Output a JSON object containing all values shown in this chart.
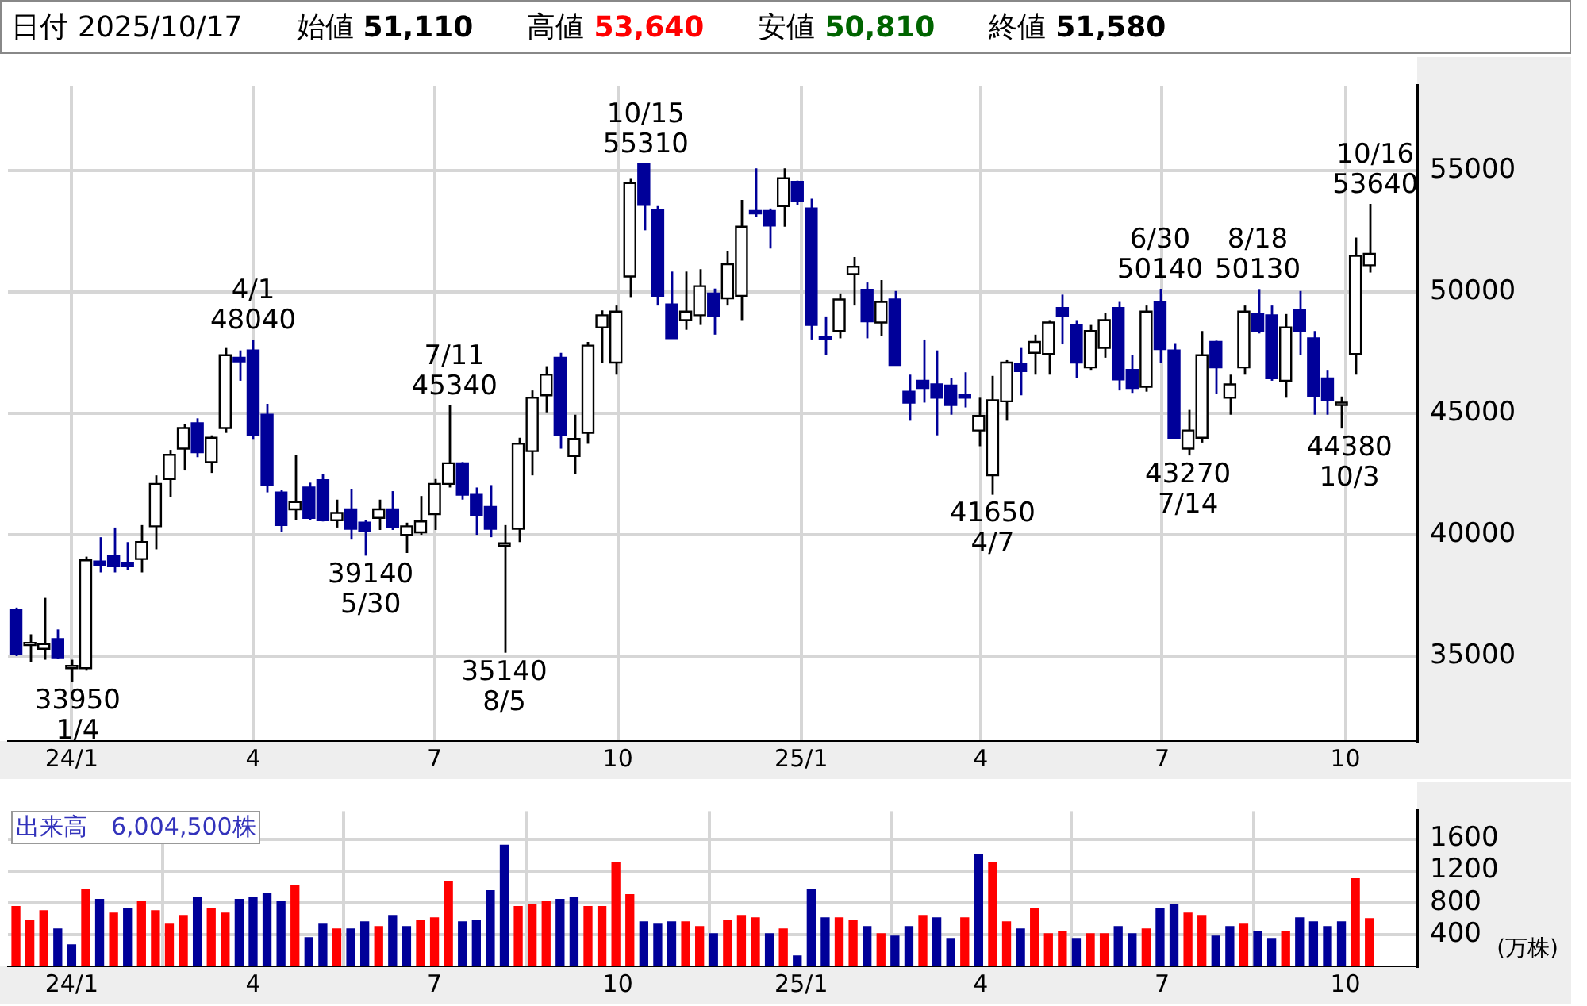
{
  "chart_data": [
    {
      "type": "other",
      "categories": [
        "日付",
        "始値",
        "高値",
        "安値",
        "終値"
      ],
      "value_labels": [
        "2025/10/17",
        "51,110",
        "53,640",
        "50,810",
        "51,580"
      ],
      "colors": [
        "#000000",
        "#000000",
        "#ff0000",
        "#006400",
        "#000000"
      ]
    },
    {
      "type": "candlestick",
      "x": [
        "2023-12-04",
        "2023-12-11",
        "2023-12-18",
        "2023-12-25",
        "2024-01-01",
        "2024-01-08",
        "2024-01-15",
        "2024-01-22",
        "2024-01-29",
        "2024-02-05",
        "2024-02-12",
        "2024-02-19",
        "2024-02-26",
        "2024-03-04",
        "2024-03-11",
        "2024-03-18",
        "2024-03-25",
        "2024-04-01",
        "2024-04-08",
        "2024-04-15",
        "2024-04-22",
        "2024-04-29",
        "2024-05-06",
        "2024-05-13",
        "2024-05-20",
        "2024-05-27",
        "2024-06-03",
        "2024-06-10",
        "2024-06-17",
        "2024-06-24",
        "2024-07-01",
        "2024-07-08",
        "2024-07-15",
        "2024-07-22",
        "2024-07-29",
        "2024-08-05",
        "2024-08-12",
        "2024-08-19",
        "2024-08-26",
        "2024-09-02",
        "2024-09-09",
        "2024-09-16",
        "2024-09-23",
        "2024-09-30",
        "2024-10-07",
        "2024-10-14",
        "2024-10-21",
        "2024-10-28",
        "2024-11-04",
        "2024-11-11",
        "2024-11-18",
        "2024-11-25",
        "2024-12-02",
        "2024-12-09",
        "2024-12-16",
        "2024-12-23",
        "2024-12-30",
        "2025-01-06",
        "2025-01-13",
        "2025-01-20",
        "2025-01-27",
        "2025-02-03",
        "2025-02-10",
        "2025-02-17",
        "2025-02-24",
        "2025-03-03",
        "2025-03-10",
        "2025-03-17",
        "2025-03-24",
        "2025-03-31",
        "2025-04-07",
        "2025-04-14",
        "2025-04-21",
        "2025-04-28",
        "2025-05-05",
        "2025-05-12",
        "2025-05-19",
        "2025-05-26",
        "2025-06-02",
        "2025-06-09",
        "2025-06-16",
        "2025-06-23",
        "2025-06-30",
        "2025-07-07",
        "2025-07-14",
        "2025-07-21",
        "2025-07-28",
        "2025-08-04",
        "2025-08-11",
        "2025-08-18",
        "2025-08-25",
        "2025-09-01",
        "2025-09-08",
        "2025-09-15",
        "2025-09-22",
        "2025-09-29",
        "2025-10-06",
        "2025-10-13"
      ],
      "ohlc": [
        [
          36900,
          37000,
          35000,
          35100
        ],
        [
          35500,
          35900,
          34750,
          35550
        ],
        [
          35300,
          37400,
          34850,
          35500
        ],
        [
          35700,
          36100,
          34900,
          34950
        ],
        [
          34500,
          34850,
          33950,
          34600
        ],
        [
          34500,
          39100,
          34400,
          38950
        ],
        [
          38900,
          39900,
          38450,
          38750
        ],
        [
          39150,
          40300,
          38450,
          38700
        ],
        [
          38850,
          39700,
          38550,
          38700
        ],
        [
          39000,
          40400,
          38450,
          39700
        ],
        [
          40350,
          42450,
          39400,
          42100
        ],
        [
          42300,
          43500,
          41550,
          43300
        ],
        [
          43550,
          44550,
          42650,
          44400
        ],
        [
          44600,
          44800,
          43200,
          43400
        ],
        [
          43000,
          44100,
          42550,
          44000
        ],
        [
          44400,
          47700,
          44200,
          47400
        ],
        [
          47300,
          47600,
          46350,
          47150
        ],
        [
          47600,
          48040,
          43950,
          44100
        ],
        [
          44950,
          45400,
          41750,
          42050
        ],
        [
          41750,
          41850,
          40100,
          40400
        ],
        [
          41050,
          43300,
          40600,
          41350
        ],
        [
          41950,
          42150,
          40600,
          40700
        ],
        [
          42250,
          42500,
          40550,
          40600
        ],
        [
          40600,
          41450,
          40300,
          40900
        ],
        [
          41050,
          41900,
          39800,
          40250
        ],
        [
          40500,
          40600,
          39140,
          40150
        ],
        [
          40700,
          41450,
          40200,
          41050
        ],
        [
          41050,
          41800,
          40200,
          40300
        ],
        [
          40000,
          40500,
          39250,
          40350
        ],
        [
          40100,
          41600,
          40000,
          40550
        ],
        [
          40850,
          42300,
          40200,
          42100
        ],
        [
          42100,
          45340,
          41950,
          42950
        ],
        [
          42950,
          43000,
          41450,
          41650
        ],
        [
          41650,
          41950,
          40000,
          40800
        ],
        [
          41150,
          42050,
          39900,
          40250
        ],
        [
          39600,
          40400,
          35140,
          39650
        ],
        [
          40250,
          44000,
          39700,
          43750
        ],
        [
          43450,
          45950,
          42450,
          45650
        ],
        [
          45750,
          46950,
          45050,
          46600
        ],
        [
          47300,
          47500,
          43550,
          44100
        ],
        [
          43250,
          44950,
          42500,
          43950
        ],
        [
          44200,
          47950,
          43750,
          47800
        ],
        [
          48550,
          49250,
          47100,
          49050
        ],
        [
          47100,
          49450,
          46600,
          49200
        ],
        [
          50650,
          54700,
          49800,
          54500
        ],
        [
          55300,
          55310,
          52550,
          53600
        ],
        [
          53400,
          53550,
          49450,
          49850
        ],
        [
          49500,
          50850,
          48100,
          48100
        ],
        [
          48850,
          50850,
          48450,
          49200
        ],
        [
          49050,
          50950,
          48650,
          50250
        ],
        [
          49950,
          50150,
          48250,
          49000
        ],
        [
          49750,
          51700,
          49450,
          51150
        ],
        [
          49850,
          53800,
          48850,
          52700
        ],
        [
          53350,
          55100,
          53100,
          53250
        ],
        [
          53350,
          53450,
          51800,
          52750
        ],
        [
          53550,
          55100,
          52700,
          54700
        ],
        [
          54550,
          54600,
          53600,
          53750
        ],
        [
          53450,
          53850,
          48050,
          48650
        ],
        [
          48150,
          49000,
          47400,
          48100
        ],
        [
          48400,
          49950,
          48100,
          49700
        ],
        [
          50750,
          51450,
          49450,
          51050
        ],
        [
          50100,
          50400,
          48100,
          48800
        ],
        [
          48750,
          50500,
          48200,
          49600
        ],
        [
          49700,
          50050,
          47000,
          47000
        ],
        [
          45900,
          46600,
          44700,
          45450
        ],
        [
          46350,
          48050,
          45450,
          46050
        ],
        [
          46200,
          47600,
          44100,
          45650
        ],
        [
          46150,
          46450,
          44950,
          45350
        ],
        [
          45750,
          46700,
          45250,
          45700
        ],
        [
          44300,
          45650,
          43650,
          44900
        ],
        [
          42450,
          46550,
          41650,
          45550
        ],
        [
          45500,
          47200,
          44700,
          47100
        ],
        [
          47050,
          47700,
          45750,
          46750
        ],
        [
          47500,
          48250,
          46600,
          47950
        ],
        [
          47450,
          48850,
          46600,
          48750
        ],
        [
          49350,
          49900,
          47850,
          49000
        ],
        [
          48650,
          48850,
          46450,
          47100
        ],
        [
          46900,
          48650,
          46800,
          48400
        ],
        [
          47700,
          49150,
          47300,
          48850
        ],
        [
          49350,
          49600,
          45950,
          46400
        ],
        [
          46800,
          47400,
          45850,
          46050
        ],
        [
          46100,
          49450,
          45900,
          49200
        ],
        [
          49600,
          50140,
          47100,
          47650
        ],
        [
          47600,
          47900,
          44000,
          44000
        ],
        [
          43550,
          45150,
          43270,
          44300
        ],
        [
          44000,
          48400,
          43800,
          47400
        ],
        [
          47950,
          48000,
          45800,
          46900
        ],
        [
          45650,
          46600,
          44950,
          46200
        ],
        [
          46900,
          49450,
          46600,
          49200
        ],
        [
          49100,
          50130,
          48300,
          48400
        ],
        [
          49050,
          49450,
          46350,
          46450
        ],
        [
          46350,
          49100,
          45650,
          48550
        ],
        [
          49250,
          50050,
          47400,
          48400
        ],
        [
          48100,
          48400,
          44950,
          45700
        ],
        [
          46450,
          46800,
          44950,
          45550
        ],
        [
          45400,
          45700,
          44380,
          45450
        ],
        [
          47450,
          52250,
          46600,
          51500
        ],
        [
          51110,
          53640,
          50810,
          51580
        ]
      ],
      "colors": [
        "#000099",
        "#ffffff",
        "#ffffff",
        "#000099",
        "#ffffff",
        "#ffffff",
        "#000099",
        "#000099",
        "#000099",
        "#ffffff",
        "#ffffff",
        "#ffffff",
        "#ffffff",
        "#000099",
        "#ffffff",
        "#ffffff",
        "#000099",
        "#000099",
        "#000099",
        "#000099",
        "#ffffff",
        "#000099",
        "#000099",
        "#ffffff",
        "#000099",
        "#000099",
        "#ffffff",
        "#000099",
        "#ffffff",
        "#ffffff",
        "#ffffff",
        "#ffffff",
        "#000099",
        "#000099",
        "#000099",
        "#ffffff",
        "#ffffff",
        "#ffffff",
        "#ffffff",
        "#000099",
        "#ffffff",
        "#ffffff",
        "#ffffff",
        "#ffffff",
        "#ffffff",
        "#000099",
        "#000099",
        "#000099",
        "#ffffff",
        "#ffffff",
        "#000099",
        "#ffffff",
        "#ffffff",
        "#000099",
        "#000099",
        "#ffffff",
        "#000099",
        "#000099",
        "#000099",
        "#ffffff",
        "#ffffff",
        "#000099",
        "#ffffff",
        "#000099",
        "#000099",
        "#000099",
        "#000099",
        "#000099",
        "#000099",
        "#ffffff",
        "#ffffff",
        "#ffffff",
        "#000099",
        "#ffffff",
        "#ffffff",
        "#000099",
        "#000099",
        "#ffffff",
        "#ffffff",
        "#000099",
        "#000099",
        "#ffffff",
        "#000099",
        "#000099",
        "#ffffff",
        "#ffffff",
        "#000099",
        "#ffffff",
        "#ffffff",
        "#000099",
        "#000099",
        "#ffffff",
        "#000099",
        "#000099",
        "#000099",
        "#ffffff",
        "#ffffff",
        "#ffffff"
      ],
      "xlim": [
        "2023-11-30",
        "2025-11-06"
      ],
      "xticks": [
        {
          "value": "2024-01-01",
          "label": "24/1"
        },
        {
          "value": "2024-04-01",
          "label": "4"
        },
        {
          "value": "2024-07-01",
          "label": "7"
        },
        {
          "value": "2024-10-01",
          "label": "10"
        },
        {
          "value": "2025-01-01",
          "label": "25/1"
        },
        {
          "value": "2025-04-01",
          "label": "4"
        },
        {
          "value": "2025-07-01",
          "label": "7"
        },
        {
          "value": "2025-10-01",
          "label": "10"
        }
      ],
      "ylim": [
        31500,
        58500
      ],
      "yticks": [
        35000,
        40000,
        45000,
        50000,
        55000
      ],
      "grid": true,
      "annotations": [
        {
          "text": "33950\n1/4",
          "x": "2024-01-04",
          "y": 33950
        },
        {
          "text": "4/1\n48040",
          "x": "2024-04-01",
          "y": 48040
        },
        {
          "text": "39140\n5/30",
          "x": "2024-05-30",
          "y": 39140
        },
        {
          "text": "7/11\n45340",
          "x": "2024-07-11",
          "y": 45340
        },
        {
          "text": "35140\n8/5",
          "x": "2024-08-05",
          "y": 35140
        },
        {
          "text": "10/15\n55310",
          "x": "2024-10-15",
          "y": 55310
        },
        {
          "text": "41650\n4/7",
          "x": "2025-04-07",
          "y": 41650
        },
        {
          "text": "6/30\n50140",
          "x": "2025-06-30",
          "y": 50140
        },
        {
          "text": "43270\n7/14",
          "x": "2025-07-14",
          "y": 43270
        },
        {
          "text": "8/18\n50130",
          "x": "2025-08-18",
          "y": 50130
        },
        {
          "text": "44380\n10/3",
          "x": "2025-10-03",
          "y": 44380
        },
        {
          "text": "10/16\n53640",
          "x": "2025-10-16",
          "y": 53640
        }
      ]
    },
    {
      "type": "bar",
      "title": "出来高　6,004,500株",
      "ylabel": "(万株)",
      "x": [
        "2023-12-04",
        "2023-12-11",
        "2023-12-18",
        "2023-12-25",
        "2024-01-01",
        "2024-01-08",
        "2024-01-15",
        "2024-01-22",
        "2024-01-29",
        "2024-02-05",
        "2024-02-12",
        "2024-02-19",
        "2024-02-26",
        "2024-03-04",
        "2024-03-11",
        "2024-03-18",
        "2024-03-25",
        "2024-04-01",
        "2024-04-08",
        "2024-04-15",
        "2024-04-22",
        "2024-04-29",
        "2024-05-06",
        "2024-05-13",
        "2024-05-20",
        "2024-05-27",
        "2024-06-03",
        "2024-06-10",
        "2024-06-17",
        "2024-06-24",
        "2024-07-01",
        "2024-07-08",
        "2024-07-15",
        "2024-07-22",
        "2024-07-29",
        "2024-08-05",
        "2024-08-12",
        "2024-08-19",
        "2024-08-26",
        "2024-09-02",
        "2024-09-09",
        "2024-09-16",
        "2024-09-23",
        "2024-09-30",
        "2024-10-07",
        "2024-10-14",
        "2024-10-21",
        "2024-10-28",
        "2024-11-04",
        "2024-11-11",
        "2024-11-18",
        "2024-11-25",
        "2024-12-02",
        "2024-12-09",
        "2024-12-16",
        "2024-12-23",
        "2024-12-30",
        "2025-01-06",
        "2025-01-13",
        "2025-01-20",
        "2025-01-27",
        "2025-02-03",
        "2025-02-10",
        "2025-02-17",
        "2025-02-24",
        "2025-03-03",
        "2025-03-10",
        "2025-03-17",
        "2025-03-24",
        "2025-03-31",
        "2025-04-07",
        "2025-04-14",
        "2025-04-21",
        "2025-04-28",
        "2025-05-05",
        "2025-05-12",
        "2025-05-19",
        "2025-05-26",
        "2025-06-02",
        "2025-06-09",
        "2025-06-16",
        "2025-06-23",
        "2025-06-30",
        "2025-07-07",
        "2025-07-14",
        "2025-07-21",
        "2025-07-28",
        "2025-08-04",
        "2025-08-11",
        "2025-08-18",
        "2025-08-25",
        "2025-09-01",
        "2025-09-08",
        "2025-09-15",
        "2025-09-22",
        "2025-09-29",
        "2025-10-06",
        "2025-10-13"
      ],
      "values": [
        750,
        580,
        700,
        470,
        270,
        960,
        840,
        670,
        730,
        810,
        700,
        530,
        640,
        870,
        730,
        670,
        840,
        870,
        920,
        810,
        1010,
        360,
        530,
        470,
        470,
        560,
        500,
        640,
        500,
        580,
        610,
        1070,
        560,
        580,
        950,
        1520,
        750,
        780,
        810,
        840,
        870,
        750,
        750,
        1300,
        900,
        560,
        530,
        560,
        560,
        500,
        410,
        580,
        640,
        610,
        410,
        470,
        130,
        960,
        610,
        610,
        580,
        500,
        410,
        380,
        500,
        640,
        610,
        350,
        610,
        1410,
        1300,
        560,
        470,
        730,
        410,
        440,
        350,
        410,
        410,
        500,
        410,
        470,
        730,
        780,
        670,
        640,
        380,
        500,
        530,
        440,
        350,
        440,
        610,
        560,
        500,
        560,
        1100,
        600
      ],
      "colors": [
        "#ff0000",
        "#ff0000",
        "#ff0000",
        "#000099",
        "#000099",
        "#ff0000",
        "#000099",
        "#ff0000",
        "#000099",
        "#ff0000",
        "#ff0000",
        "#ff0000",
        "#ff0000",
        "#000099",
        "#ff0000",
        "#ff0000",
        "#000099",
        "#000099",
        "#000099",
        "#000099",
        "#ff0000",
        "#000099",
        "#000099",
        "#ff0000",
        "#000099",
        "#000099",
        "#ff0000",
        "#000099",
        "#000099",
        "#ff0000",
        "#ff0000",
        "#ff0000",
        "#000099",
        "#000099",
        "#000099",
        "#000099",
        "#ff0000",
        "#ff0000",
        "#ff0000",
        "#000099",
        "#000099",
        "#ff0000",
        "#ff0000",
        "#ff0000",
        "#ff0000",
        "#000099",
        "#000099",
        "#000099",
        "#ff0000",
        "#ff0000",
        "#000099",
        "#ff0000",
        "#ff0000",
        "#ff0000",
        "#000099",
        "#ff0000",
        "#000099",
        "#000099",
        "#000099",
        "#ff0000",
        "#ff0000",
        "#000099",
        "#ff0000",
        "#000099",
        "#000099",
        "#ff0000",
        "#000099",
        "#000099",
        "#ff0000",
        "#000099",
        "#ff0000",
        "#ff0000",
        "#000099",
        "#ff0000",
        "#ff0000",
        "#ff0000",
        "#000099",
        "#ff0000",
        "#ff0000",
        "#000099",
        "#000099",
        "#ff0000",
        "#000099",
        "#000099",
        "#ff0000",
        "#ff0000",
        "#000099",
        "#000099",
        "#ff0000",
        "#000099",
        "#000099",
        "#ff0000",
        "#000099",
        "#000099",
        "#000099",
        "#000099",
        "#ff0000",
        "#ff0000"
      ],
      "xlim": [
        "2023-11-30",
        "2025-11-06"
      ],
      "xticks": [
        {
          "value": "2024-01-01",
          "label": "24/1"
        },
        {
          "value": "2024-04-01",
          "label": "4"
        },
        {
          "value": "2024-07-01",
          "label": "7"
        },
        {
          "value": "2024-10-01",
          "label": "10"
        },
        {
          "value": "2025-01-01",
          "label": "25/1"
        },
        {
          "value": "2025-04-01",
          "label": "4"
        },
        {
          "value": "2025-07-01",
          "label": "7"
        },
        {
          "value": "2025-10-01",
          "label": "10"
        }
      ],
      "ylim": [
        0,
        1950
      ],
      "yticks": [
        400,
        800,
        1200,
        1600
      ],
      "grid": true
    }
  ]
}
